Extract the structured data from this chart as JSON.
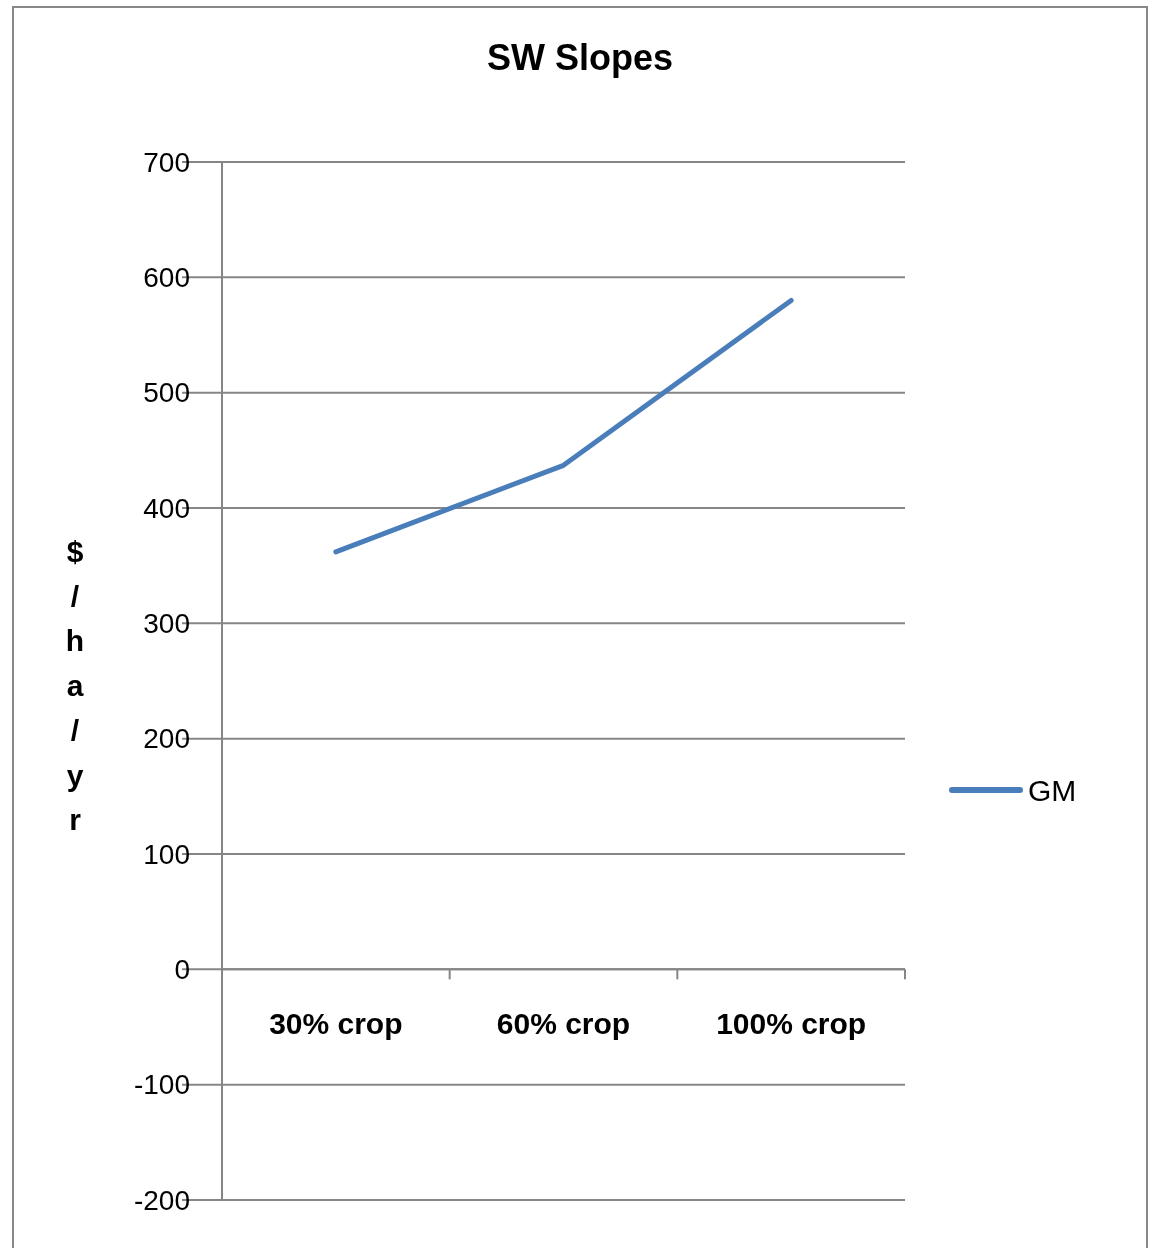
{
  "chart_data": {
    "type": "line",
    "title": "SW Slopes",
    "ylabel": "$/ha/yr",
    "categories": [
      "30% crop",
      "60% crop",
      "100% crop"
    ],
    "series": [
      {
        "name": "GM",
        "color": "#4a7ebb",
        "values": [
          362,
          437,
          580
        ]
      }
    ],
    "ylim": [
      -200,
      700
    ],
    "yticks": [
      -200,
      -100,
      0,
      100,
      200,
      300,
      400,
      500,
      600,
      700
    ],
    "grid": "y",
    "legend": "right",
    "marker": "none",
    "line_style": "solid"
  }
}
